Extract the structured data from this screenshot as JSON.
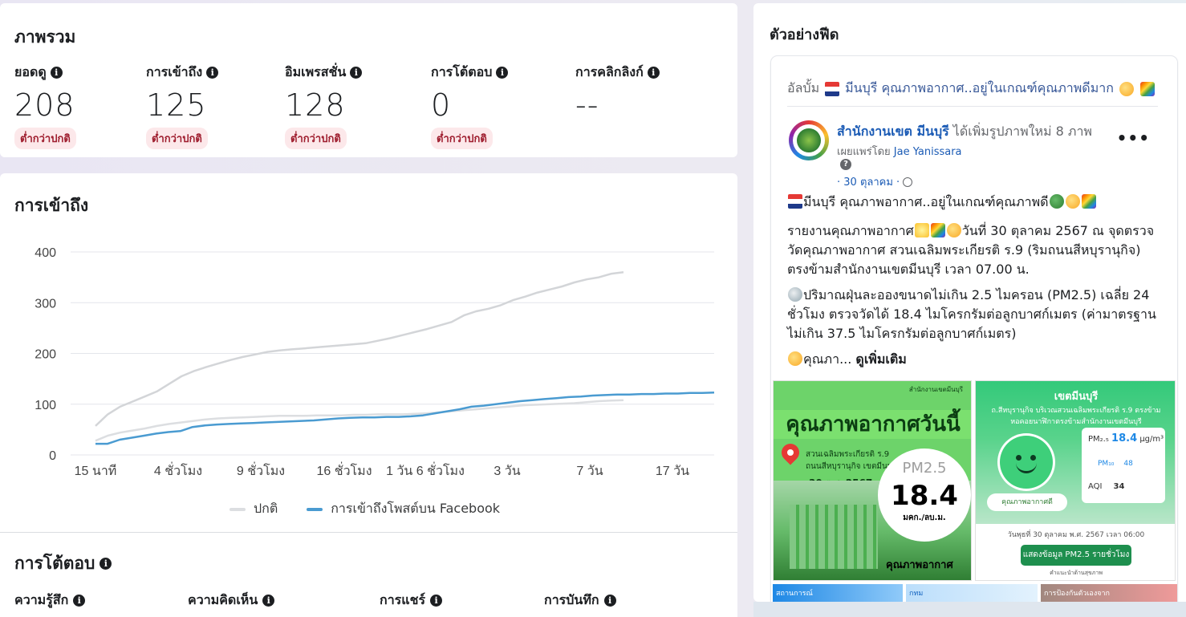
{
  "overview": {
    "title": "ภาพรวม",
    "metrics": [
      {
        "label": "ยอดดู",
        "value": "208",
        "badge": "ต่ำกว่าปกติ"
      },
      {
        "label": "การเข้าถึง",
        "value": "125",
        "badge": "ต่ำกว่าปกติ"
      },
      {
        "label": "อิมเพรสชั่น",
        "value": "128",
        "badge": "ต่ำกว่าปกติ"
      },
      {
        "label": "การโต้ตอบ",
        "value": "0",
        "badge": "ต่ำกว่าปกติ"
      },
      {
        "label": "การคลิกลิงก์",
        "value": "--",
        "badge": ""
      }
    ]
  },
  "reach": {
    "title": "การเข้าถึง",
    "legend": {
      "normal": "ปกติ",
      "facebook": "การเข้าถึงโพสต์บน Facebook"
    }
  },
  "chart_data": {
    "type": "line",
    "title": "",
    "xlabel": "",
    "ylabel": "",
    "ylim": [
      0,
      400
    ],
    "yticks": [
      0,
      100,
      200,
      300,
      400
    ],
    "xticks": [
      "15 นาที",
      "4 ชั่วโมง",
      "9 ชั่วโมง",
      "16 ชั่วโมง",
      "1 วัน 6 ชั่วโมง",
      "3 วัน",
      "7 วัน",
      "17 วัน"
    ],
    "grid": true,
    "legend_position": "bottom",
    "colors": {
      "upper": "#d3d5d8",
      "normal": "#dcdee1",
      "facebook": "#4a9bd1"
    },
    "series": [
      {
        "role": "upper",
        "values": [
          57,
          80,
          95,
          105,
          115,
          125,
          140,
          155,
          165,
          173,
          180,
          187,
          193,
          198,
          203,
          206,
          208,
          210,
          212,
          214,
          216,
          218,
          220,
          225,
          230,
          236,
          242,
          248,
          255,
          262,
          275,
          283,
          288,
          295,
          305,
          312,
          320,
          326,
          332,
          340,
          346,
          350,
          357,
          360
        ]
      },
      {
        "name": "ปกติ",
        "role": "normal",
        "values": [
          28,
          38,
          44,
          48,
          52,
          57,
          61,
          64,
          67,
          70,
          72,
          73,
          74,
          75,
          76,
          77,
          77,
          77,
          78,
          78,
          78,
          79,
          79,
          80,
          80,
          80,
          81,
          82,
          84,
          86,
          88,
          90,
          92,
          94,
          96,
          98,
          99,
          100,
          101,
          102,
          104,
          106,
          107,
          108
        ]
      },
      {
        "name": "การเข้าถึงโพสต์บน Facebook",
        "role": "facebook",
        "values": [
          22,
          22,
          30,
          34,
          38,
          42,
          45,
          47,
          55,
          58,
          60,
          61,
          62,
          63,
          64,
          65,
          66,
          67,
          68,
          70,
          72,
          73,
          74,
          74,
          75,
          75,
          76,
          78,
          82,
          86,
          90,
          95,
          97,
          100,
          103,
          106,
          108,
          110,
          112,
          114,
          115,
          117,
          118,
          119,
          119,
          120,
          120,
          121,
          121,
          122,
          122,
          123
        ]
      }
    ]
  },
  "engagement": {
    "title": "การโต้ตอบ",
    "metrics": [
      "ความรู้สึก",
      "ความคิดเห็น",
      "การแชร์",
      "การบันทึก"
    ]
  },
  "feed": {
    "title": "ตัวอย่างฟีด",
    "album_prefix": "อัลบั้ม",
    "album_name": "มีนบุรี คุณภาพอากาศ..อยู่ในเกณฑ์คุณภาพดีมาก",
    "page_name": "สำนักงานเขต มีนบุรี",
    "page_action": " ได้เพิ่มรูปภาพใหม่ 8 ภาพ",
    "published_by_prefix": "เผยแพร่โดย ",
    "published_by": "Jae Yanissara",
    "date": "· 30 ตุลาคม ·",
    "more_icon": "more-horizontal-icon",
    "paragraph1": "มีนบุรี คุณภาพอากาศ..อยู่ในเกณฑ์คุณภาพดี",
    "paragraph2a": "รายงานคุณภาพอากาศ",
    "paragraph2b": "วันที่ 30 ตุลาคม 2567 ณ จุดตรวจวัดคุณภาพอากาศ สวนเฉลิมพระเกียรติ ร.9 (ริมถนนสีหบุรานุกิจ) ตรงข้ามสำนักงานเขตมีนบุรี เวลา 07.00 น.",
    "paragraph3": "ปริมาณฝุ่นละอองขนาดไม่เกิน 2.5 ไมครอน (PM2.5) เฉลี่ย 24 ชั่วโมง ตรวจวัดได้ 18.4 ไมโครกรัมต่อลูกบาศก์เมตร (ค่ามาตรฐานไม่เกิน 37.5 ไมโครกรัมต่อลูกบาศก์เมตร)",
    "paragraph4": "คุณภา... ",
    "see_more": "ดูเพิ่มเติม",
    "image1": {
      "org": "สำนักงานเขตมีนบุรี",
      "title": "คุณภาพอากาศวันนี้",
      "location_line1": "สวนเฉลิมพระเกียรติ ร.9",
      "location_line2": "ถนนสีหบุรานุกิจ เขตมีนบุรี",
      "date": "30 ต.ค.2567",
      "pm_label": "PM2.5",
      "pm_value": "18.4",
      "pm_unit": "มคก./ลบ.ม.",
      "quality": "คุณภาพอากาศ"
    },
    "image2": {
      "district": "เขตมีนบุรี",
      "subtitle": "ถ.สีหบุรานุกิจ บริเวณสวนเฉลิมพระเกียรติ ร.9 ตรงข้ามหอคอยนาฬิกาตรงข้ามสำนักงานเขตมีนบุรี",
      "quality_pill": "คุณภาพอากาศดี",
      "pm25_label": "PM₂.₅",
      "pm25_value": "18.4",
      "pm25_unit": "µg/m³",
      "pm10_label": "PM₁₀",
      "pm10_value": "48",
      "aqi_label": "AQI",
      "aqi_value": "34",
      "date_line": "วันพุธที่ 30 ตุลาคม พ.ศ. 2567 เวลา 06:00",
      "button": "แสดงข้อมูล PM2.5 รายชั่วโมง",
      "footer": "คำแนะนำด้านสุขภาพ"
    },
    "thumb1": "สถานการณ์",
    "thumb2": "กทม",
    "thumb3": "การป้องกันตัวเองจาก"
  }
}
